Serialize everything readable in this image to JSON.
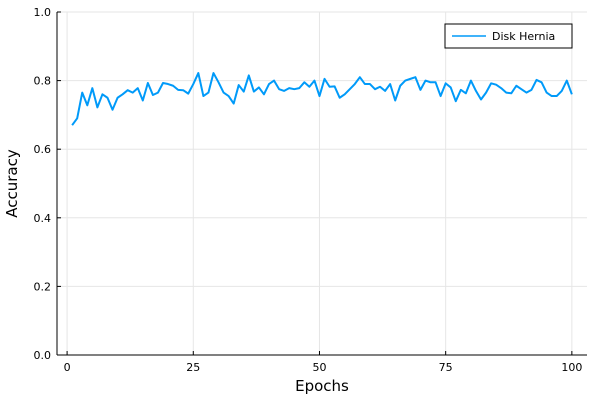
{
  "chart_data": {
    "type": "line",
    "title": "",
    "xlabel": "Epochs",
    "ylabel": "Accuracy",
    "xlim": [
      -2,
      103
    ],
    "ylim": [
      0,
      1
    ],
    "xticks": [
      0,
      25,
      50,
      75,
      100
    ],
    "yticks": [
      0.0,
      0.2,
      0.4,
      0.6,
      0.8,
      1.0
    ],
    "xtick_labels": [
      "0",
      "25",
      "50",
      "75",
      "100"
    ],
    "ytick_labels": [
      "0.0",
      "0.2",
      "0.4",
      "0.6",
      "0.8",
      "1.0"
    ],
    "grid": true,
    "legend_position": "top-right",
    "colors": {
      "series": "#009af9",
      "grid": "#e6e6e6",
      "axis": "#000000"
    },
    "series": [
      {
        "name": "Disk Hernia",
        "x": [
          1,
          2,
          3,
          4,
          5,
          6,
          7,
          8,
          9,
          10,
          11,
          12,
          13,
          14,
          15,
          16,
          17,
          18,
          19,
          20,
          21,
          22,
          23,
          24,
          25,
          26,
          27,
          28,
          29,
          30,
          31,
          32,
          33,
          34,
          35,
          36,
          37,
          38,
          39,
          40,
          41,
          42,
          43,
          44,
          45,
          46,
          47,
          48,
          49,
          50,
          51,
          52,
          53,
          54,
          55,
          56,
          57,
          58,
          59,
          60,
          61,
          62,
          63,
          64,
          65,
          66,
          67,
          68,
          69,
          70,
          71,
          72,
          73,
          74,
          75,
          76,
          77,
          78,
          79,
          80,
          81,
          82,
          83,
          84,
          85,
          86,
          87,
          88,
          89,
          90,
          91,
          92,
          93,
          94,
          95,
          96,
          97,
          98,
          99,
          100
        ],
        "values": [
          0.67,
          0.69,
          0.765,
          0.728,
          0.778,
          0.722,
          0.76,
          0.75,
          0.715,
          0.75,
          0.76,
          0.772,
          0.765,
          0.778,
          0.742,
          0.793,
          0.758,
          0.765,
          0.793,
          0.79,
          0.785,
          0.773,
          0.772,
          0.762,
          0.79,
          0.822,
          0.755,
          0.765,
          0.822,
          0.795,
          0.765,
          0.755,
          0.733,
          0.787,
          0.768,
          0.815,
          0.768,
          0.78,
          0.76,
          0.79,
          0.8,
          0.775,
          0.77,
          0.778,
          0.775,
          0.778,
          0.795,
          0.782,
          0.8,
          0.755,
          0.805,
          0.782,
          0.783,
          0.75,
          0.76,
          0.775,
          0.79,
          0.81,
          0.79,
          0.79,
          0.775,
          0.782,
          0.77,
          0.79,
          0.742,
          0.785,
          0.8,
          0.805,
          0.81,
          0.773,
          0.8,
          0.795,
          0.795,
          0.755,
          0.792,
          0.78,
          0.74,
          0.773,
          0.763,
          0.8,
          0.77,
          0.745,
          0.765,
          0.792,
          0.788,
          0.778,
          0.765,
          0.763,
          0.785,
          0.775,
          0.765,
          0.773,
          0.802,
          0.795,
          0.765,
          0.755,
          0.755,
          0.77,
          0.8,
          0.76
        ]
      }
    ]
  }
}
